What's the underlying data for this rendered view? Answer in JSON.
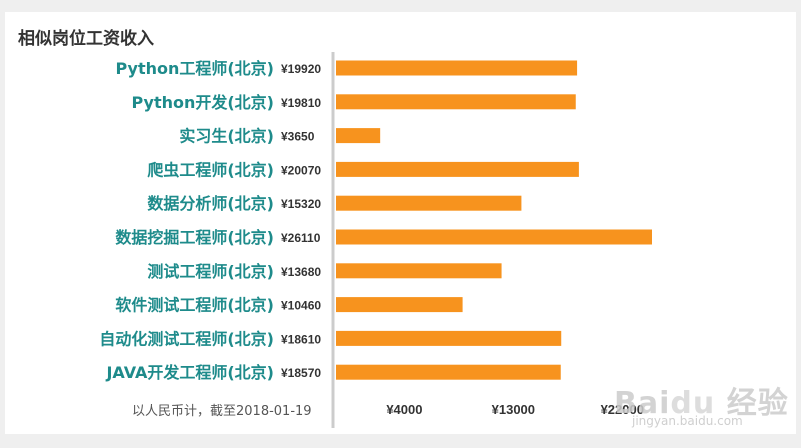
{
  "title": "相似岗位工资收入",
  "note": "以人民币计，截至2018-01-19",
  "watermark": "Baidu 经验",
  "watermark_sub": "jingyan.baidu.com",
  "colors": {
    "bar": "#f7931e",
    "category_label": "#1e8b8b",
    "value_label": "#333333",
    "axis": "#cccccc"
  },
  "chart_data": {
    "type": "bar",
    "orientation": "horizontal",
    "categories": [
      "Python工程师(北京)",
      "Python开发(北京)",
      "实习生(北京)",
      "爬虫工程师(北京)",
      "数据分析师(北京)",
      "数据挖掘工程师(北京)",
      "测试工程师(北京)",
      "软件测试工程师(北京)",
      "自动化测试工程师(北京)",
      "JAVA开发工程师(北京)"
    ],
    "values": [
      19920,
      19810,
      3650,
      20070,
      15320,
      26110,
      13680,
      10460,
      18610,
      18570
    ],
    "value_labels": [
      "¥19920",
      "¥19810",
      "¥3650",
      "¥20070",
      "¥15320",
      "¥26110",
      "¥13680",
      "¥10460",
      "¥18610",
      "¥18570"
    ],
    "x_ticks": [
      4000,
      13000,
      22000
    ],
    "x_tick_labels": [
      "¥4000",
      "¥13000",
      "¥22000"
    ],
    "xlim": [
      0,
      29000
    ],
    "grid": false
  }
}
